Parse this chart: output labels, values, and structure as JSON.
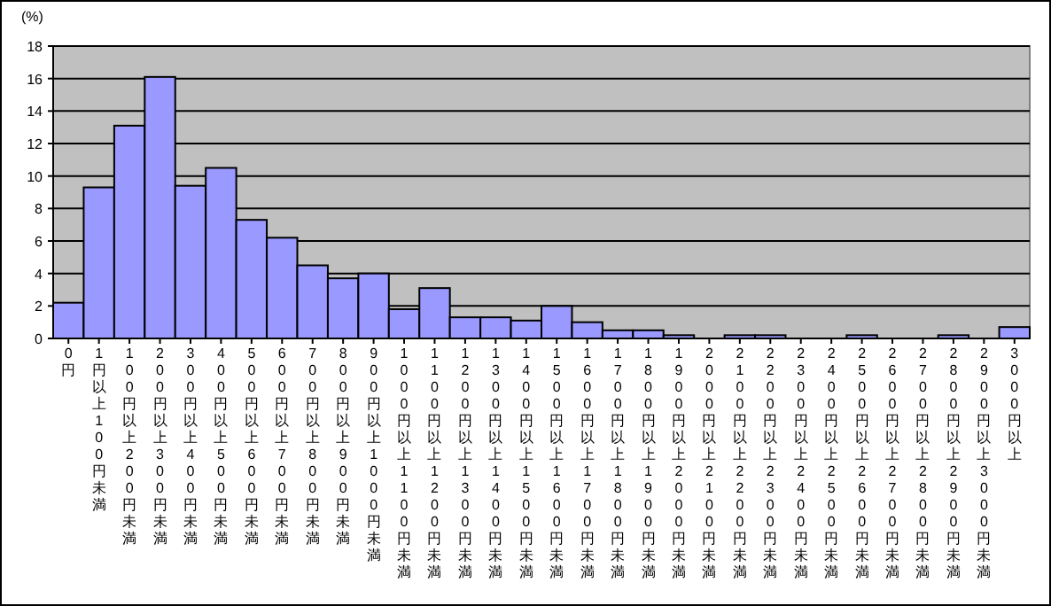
{
  "chart_data": {
    "type": "bar",
    "ylabel": "(%)",
    "categories": [
      "0円",
      "1円以上100円未満",
      "100円以上200円未満",
      "200円以上300円未満",
      "300円以上400円未満",
      "400円以上500円未満",
      "500円以上600円未満",
      "600円以上700円未満",
      "700円以上800円未満",
      "800円以上900円未満",
      "900円以上1000円未満",
      "1000円以上1100円未満",
      "1100円以上1200円未満",
      "1200円以上1300円未満",
      "1300円以上1400円未満",
      "1400円以上1500円未満",
      "1500円以上1600円未満",
      "1600円以上1700円未満",
      "1700円以上1800円未満",
      "1800円以上1900円未満",
      "1900円以上2000円未満",
      "2000円以上2100円未満",
      "2100円以上2200円未満",
      "2200円以上2300円未満",
      "2300円以上2400円未満",
      "2400円以上2500円未満",
      "2500円以上2600円未満",
      "2600円以上2700円未満",
      "2700円以上2800円未満",
      "2800円以上2900円未満",
      "2900円以上3000円未満",
      "3000円以上"
    ],
    "values": [
      2.2,
      9.3,
      13.1,
      16.1,
      9.4,
      10.5,
      7.3,
      6.2,
      4.5,
      3.7,
      4.0,
      1.8,
      3.1,
      1.3,
      1.3,
      1.1,
      2.0,
      1.0,
      0.5,
      0.5,
      0.2,
      0,
      0.2,
      0.2,
      0,
      0,
      0.2,
      0,
      0,
      0.2,
      0,
      0.7
    ],
    "color": "#9999ff",
    "ylim": [
      0,
      18
    ],
    "yticks": [
      0,
      2,
      4,
      6,
      8,
      10,
      12,
      14,
      16,
      18
    ],
    "grid": "y"
  }
}
